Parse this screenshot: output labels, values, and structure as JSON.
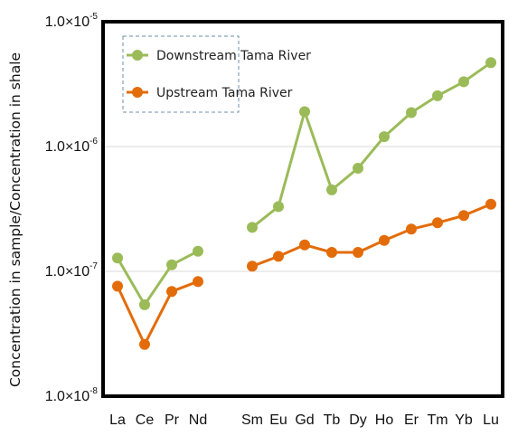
{
  "chart_data": {
    "type": "line",
    "yscale": "log",
    "ylabel": "Concentration in sample/Concentration in shale",
    "xlabel": "",
    "ylim": [
      "1.0×10⁻⁸",
      "1.0×10⁻⁵"
    ],
    "ylim_values": [
      1e-08,
      1e-05
    ],
    "yticks": [
      {
        "base": "1.0×10",
        "exp": "-5",
        "value": 1e-05
      },
      {
        "base": "1.0×10",
        "exp": "-6",
        "value": 1e-06
      },
      {
        "base": "1.0×10",
        "exp": "-7",
        "value": 1e-07
      },
      {
        "base": "1.0×10",
        "exp": "-8",
        "value": 1e-08
      }
    ],
    "grid": "horizontal",
    "legend_position": "top-left",
    "categories": [
      "La",
      "Ce",
      "Pr",
      "Nd",
      "Sm",
      "Eu",
      "Gd",
      "Tb",
      "Dy",
      "Ho",
      "Er",
      "Tm",
      "Yb",
      "Lu"
    ],
    "gap_after_index": 3,
    "series": [
      {
        "name": "Downstream Tama River",
        "color": "#9bbb59",
        "values": [
          1.28e-07,
          5.4e-08,
          1.13e-07,
          1.45e-07,
          2.25e-07,
          3.3e-07,
          1.9e-06,
          4.5e-07,
          6.7e-07,
          1.2e-06,
          1.87e-06,
          2.55e-06,
          3.3e-06,
          4.7e-06
        ]
      },
      {
        "name": "Upstream Tama River",
        "color": "#e36c0a",
        "values": [
          7.6e-08,
          2.6e-08,
          6.9e-08,
          8.3e-08,
          1.1e-07,
          1.32e-07,
          1.63e-07,
          1.42e-07,
          1.42e-07,
          1.77e-07,
          2.18e-07,
          2.45e-07,
          2.8e-07,
          3.45e-07
        ]
      }
    ]
  }
}
